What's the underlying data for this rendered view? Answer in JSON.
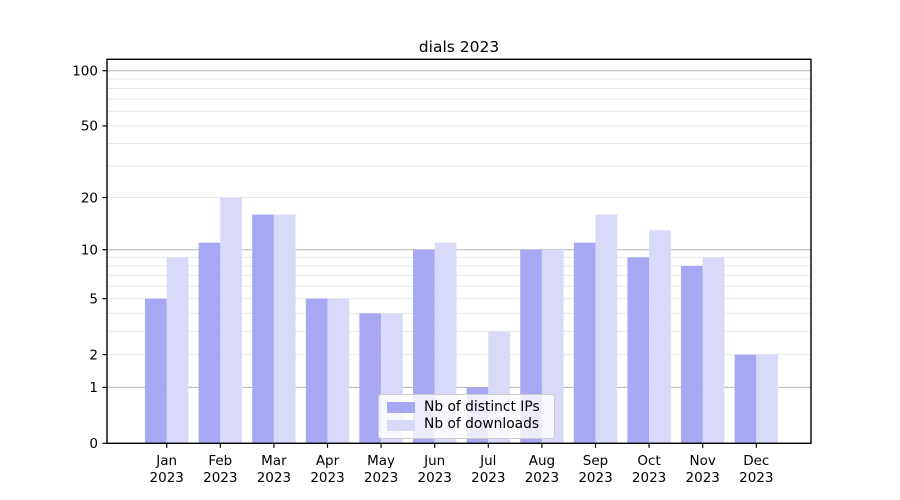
{
  "chart_data": {
    "type": "bar",
    "title": "dials 2023",
    "categories": [
      "Jan",
      "Feb",
      "Mar",
      "Apr",
      "May",
      "Jun",
      "Jul",
      "Aug",
      "Sep",
      "Oct",
      "Nov",
      "Dec"
    ],
    "x_tick_year": "2023",
    "series": [
      {
        "name": "Nb of distinct IPs",
        "color": "#a7a7f4",
        "values": [
          5,
          11,
          16,
          5,
          4,
          10,
          1,
          10,
          11,
          9,
          8,
          2
        ]
      },
      {
        "name": "Nb of downloads",
        "color": "#d9d9f9",
        "values": [
          9,
          20,
          16,
          5,
          4,
          11,
          3,
          10,
          16,
          13,
          9,
          2
        ]
      }
    ],
    "xlabel": "",
    "ylabel": "",
    "y_scale": "log1p",
    "ylim": [
      0,
      116
    ],
    "y_ticks": [
      0,
      1,
      2,
      5,
      10,
      20,
      50,
      100
    ],
    "grid_major": [
      1,
      10,
      100
    ],
    "grid_minor": [
      2,
      3,
      4,
      5,
      6,
      7,
      8,
      9,
      20,
      30,
      40,
      50,
      60,
      70,
      80,
      90
    ],
    "grid": "on",
    "legend_position": "lower center"
  }
}
